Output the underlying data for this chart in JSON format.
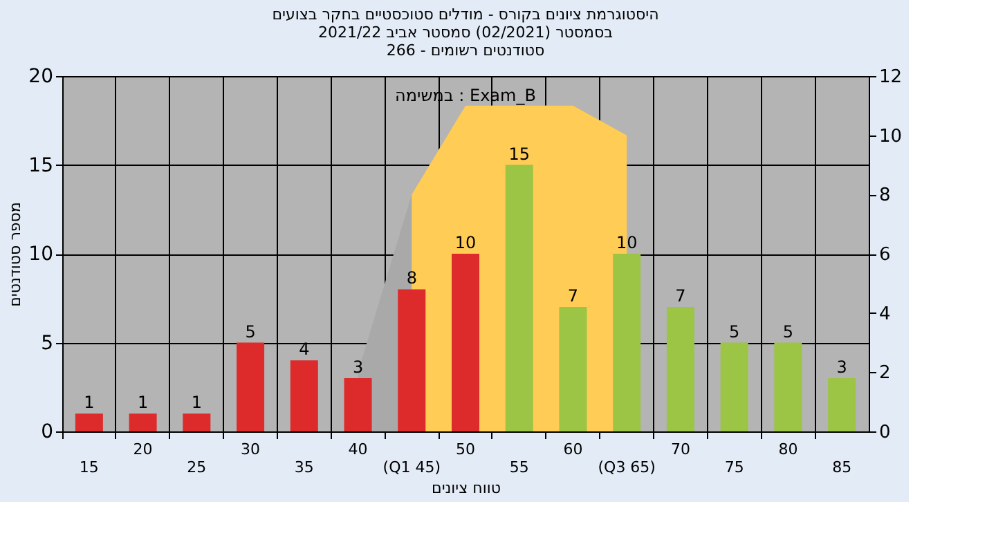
{
  "chart_data": {
    "type": "bar",
    "title": [
      "היסטוגרמת ציונים בקורס - מודלים סטוכסטיים בחקר בצועים",
      "בסמסטר  (02/2021)  סמסטר אביב 2021/22",
      "סטודנטים רשומים - 266"
    ],
    "xlabel": "טווח ציונים",
    "ylabel": "מספר סטודנטים",
    "categories": [
      "15",
      "20",
      "25",
      "30",
      "35",
      "40",
      "(Q1 45)",
      "50",
      "55",
      "60",
      "(Q3 65)",
      "70",
      "75",
      "80",
      "85"
    ],
    "series": [
      {
        "type": "area",
        "axis": "y2",
        "color": "#a9a9a9",
        "values": [
          null,
          null,
          null,
          null,
          null,
          2,
          8,
          11,
          11,
          11,
          10,
          null,
          null,
          null,
          null
        ]
      },
      {
        "type": "area",
        "axis": "y2",
        "color": "#ffcc55",
        "values": [
          null,
          null,
          null,
          null,
          null,
          null,
          8,
          11,
          11,
          11,
          10,
          null,
          null,
          null,
          null
        ]
      },
      {
        "data_labels": true,
        "colors": [
          "#dd2a2a",
          "#dd2a2a",
          "#dd2a2a",
          "#dd2a2a",
          "#dd2a2a",
          "#dd2a2a",
          "#dd2a2a",
          "#dd2a2a",
          "#9cc445",
          "#9cc445",
          "#9cc445",
          "#9cc445",
          "#9cc445",
          "#9cc445",
          "#9cc445"
        ],
        "values": [
          1,
          1,
          1,
          5,
          4,
          3,
          8,
          10,
          15,
          7,
          10,
          7,
          5,
          5,
          3
        ]
      }
    ],
    "annotations": [
      "במשימה : Exam_B"
    ],
    "ylim": [
      0,
      20
    ],
    "yticks": [
      0,
      5,
      10,
      15,
      20
    ],
    "y2lim": [
      0,
      12
    ],
    "y2ticks": [
      0,
      2,
      4,
      6,
      8,
      10,
      12
    ],
    "grid": true
  }
}
